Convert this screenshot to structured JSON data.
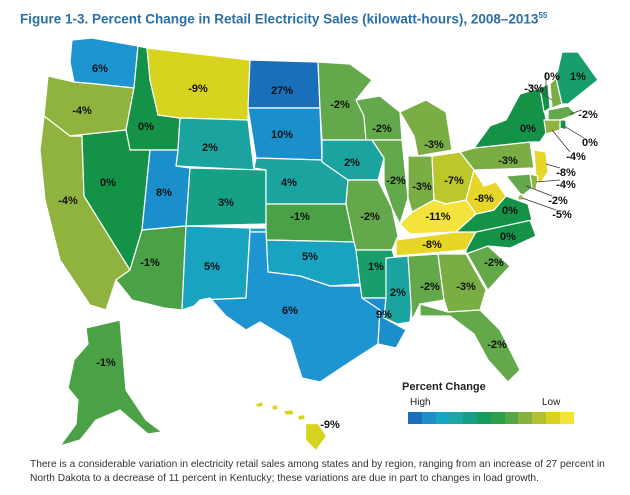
{
  "title_text": "Figure 1-3. Percent Change in Retail Electricity Sales (kilowatt-hours), 2008–2013",
  "title_ref": "55",
  "legend": {
    "title": "Percent Change",
    "high": "High",
    "low": "Low",
    "colors": [
      "#1a6fba",
      "#1e8fca",
      "#14a7c4",
      "#1ea8a4",
      "#16a088",
      "#179a5e",
      "#2c9f4a",
      "#56a646",
      "#86b33e",
      "#b2c12e",
      "#d8d21e",
      "#f4e33a"
    ]
  },
  "states": [
    {
      "name": "WA",
      "label": "6%",
      "color": "#1e95d0"
    },
    {
      "name": "OR",
      "label": "-4%",
      "color": "#8fb33e"
    },
    {
      "name": "CA",
      "label": "-4%",
      "color": "#8fb33e"
    },
    {
      "name": "ID",
      "label": "0%",
      "color": "#139248"
    },
    {
      "name": "NV",
      "label": "0%",
      "color": "#139248"
    },
    {
      "name": "MT",
      "label": "-9%",
      "color": "#d6d41e"
    },
    {
      "name": "WY",
      "label": "2%",
      "color": "#1aa39f"
    },
    {
      "name": "UT",
      "label": "8%",
      "color": "#1a8fcc"
    },
    {
      "name": "CO",
      "label": "3%",
      "color": "#16a085"
    },
    {
      "name": "AZ",
      "label": "-1%",
      "color": "#4ba145"
    },
    {
      "name": "NM",
      "label": "5%",
      "color": "#18a3c0"
    },
    {
      "name": "ND",
      "label": "27%",
      "color": "#1a6fba"
    },
    {
      "name": "SD",
      "label": "10%",
      "color": "#1a8fcc"
    },
    {
      "name": "NE",
      "label": "4%",
      "color": "#1aa39f"
    },
    {
      "name": "KS",
      "label": "-1%",
      "color": "#4ba145"
    },
    {
      "name": "OK",
      "label": "5%",
      "color": "#18a3c0"
    },
    {
      "name": "TX",
      "label": "6%",
      "color": "#1e95d0"
    },
    {
      "name": "MN",
      "label": "-2%",
      "color": "#63a84a"
    },
    {
      "name": "IA",
      "label": "2%",
      "color": "#1aa39f"
    },
    {
      "name": "MO",
      "label": "-2%",
      "color": "#63a84a"
    },
    {
      "name": "AR",
      "label": "1%",
      "color": "#179e6a"
    },
    {
      "name": "LA",
      "label": "9%",
      "color": "#1a8fcc"
    },
    {
      "name": "WI",
      "label": "-2%",
      "color": "#63a84a"
    },
    {
      "name": "IL",
      "label": "-2%",
      "color": "#63a84a"
    },
    {
      "name": "MI",
      "label": "-3%",
      "color": "#7aae44"
    },
    {
      "name": "IN",
      "label": "-3%",
      "color": "#7aae44"
    },
    {
      "name": "OH",
      "label": "-7%",
      "color": "#bcc72b"
    },
    {
      "name": "KY",
      "label": "-11%",
      "color": "#f4e33a"
    },
    {
      "name": "TN",
      "label": "-8%",
      "color": "#e6d62a"
    },
    {
      "name": "MS",
      "label": "2%",
      "color": "#1aa39f"
    },
    {
      "name": "AL",
      "label": "-2%",
      "color": "#63a84a"
    },
    {
      "name": "GA",
      "label": "-3%",
      "color": "#7aae44"
    },
    {
      "name": "FL",
      "label": "-2%",
      "color": "#63a84a"
    },
    {
      "name": "SC",
      "label": "-2%",
      "color": "#63a84a"
    },
    {
      "name": "NC",
      "label": "0%",
      "color": "#139248"
    },
    {
      "name": "VA",
      "label": "0%",
      "color": "#139248"
    },
    {
      "name": "WV",
      "label": "-8%",
      "color": "#e6d62a"
    },
    {
      "name": "PA",
      "label": "-3%",
      "color": "#7aae44"
    },
    {
      "name": "NY",
      "label": "0%",
      "color": "#139248"
    },
    {
      "name": "VT",
      "label": "0%",
      "color": "#139248"
    },
    {
      "name": "NH",
      "label": "-3%",
      "color": "#7aae44"
    },
    {
      "name": "ME",
      "label": "1%",
      "color": "#179e6a"
    },
    {
      "name": "MA",
      "label": "-2%",
      "color": "#63a84a"
    },
    {
      "name": "RI",
      "label": "0%",
      "color": "#139248"
    },
    {
      "name": "CT",
      "label": "-4%",
      "color": "#8fb33e"
    },
    {
      "name": "NJ",
      "label": "-8%",
      "color": "#e6d62a"
    },
    {
      "name": "DE",
      "label": "-4%",
      "color": "#8fb33e"
    },
    {
      "name": "MD",
      "label": "-2%",
      "color": "#63a84a"
    },
    {
      "name": "DC",
      "label": "-5%",
      "color": "#a0b93a"
    },
    {
      "name": "AK",
      "label": "-1%",
      "color": "#4ba145"
    },
    {
      "name": "HI",
      "label": "-9%",
      "color": "#d6d41e"
    }
  ],
  "caption": "There is a considerable variation in electricity retail sales among states and by region, ranging from an increase of 27 percent in North Dakota to a decrease of 11 percent in Kentucky; these variations are due in part to changes in load growth."
}
